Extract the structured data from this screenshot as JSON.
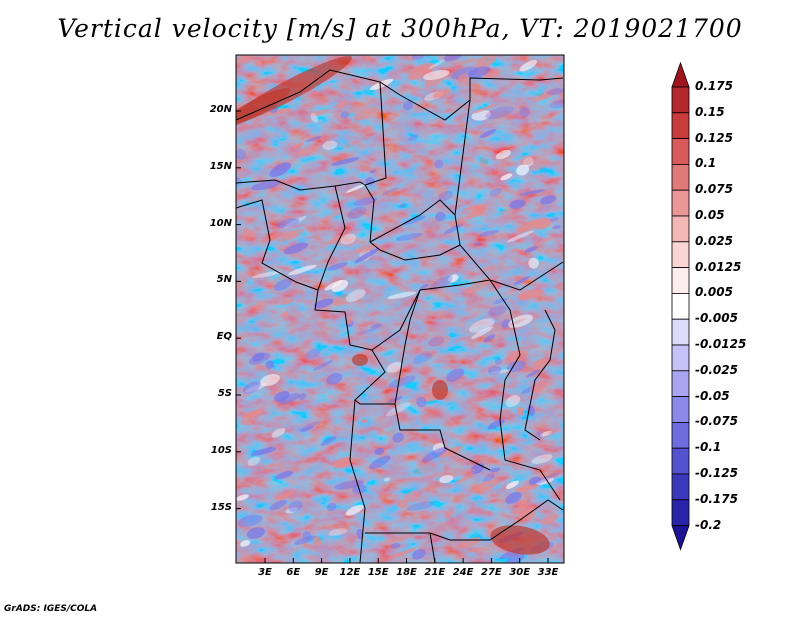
{
  "title": "Vertical velocity [m/s] at 300hPa, VT: 2019021700",
  "credit": "GrADS: IGES/COLA",
  "map": {
    "lat_ticks": [
      "20N",
      "15N",
      "10N",
      "5N",
      "EQ",
      "5S",
      "10S",
      "15S"
    ],
    "lon_ticks": [
      "3E",
      "6E",
      "9E",
      "12E",
      "15E",
      "18E",
      "21E",
      "24E",
      "27E",
      "30E",
      "33E"
    ],
    "field_colors": {
      "positive": "#e8888a",
      "negative": "#7a78e8",
      "neutral": "#f4f0f8"
    }
  },
  "colorbar": {
    "levels": [
      "0.175",
      "0.15",
      "0.125",
      "0.1",
      "0.075",
      "0.05",
      "0.025",
      "0.0125",
      "0.005",
      "-0.005",
      "-0.0125",
      "-0.025",
      "-0.05",
      "-0.075",
      "-0.1",
      "-0.125",
      "-0.175",
      "-0.2"
    ],
    "colors": [
      "#a0141e",
      "#b4282d",
      "#c83c3c",
      "#d85a5a",
      "#e07a78",
      "#e99897",
      "#f3b8b6",
      "#f9d6d4",
      "#fceeee",
      "#ffffff",
      "#dedcfa",
      "#c4c2f6",
      "#a8a6f0",
      "#8c8ae8",
      "#6e6cde",
      "#5552d0",
      "#3c38bc",
      "#2a24a8",
      "#1c1494"
    ]
  }
}
